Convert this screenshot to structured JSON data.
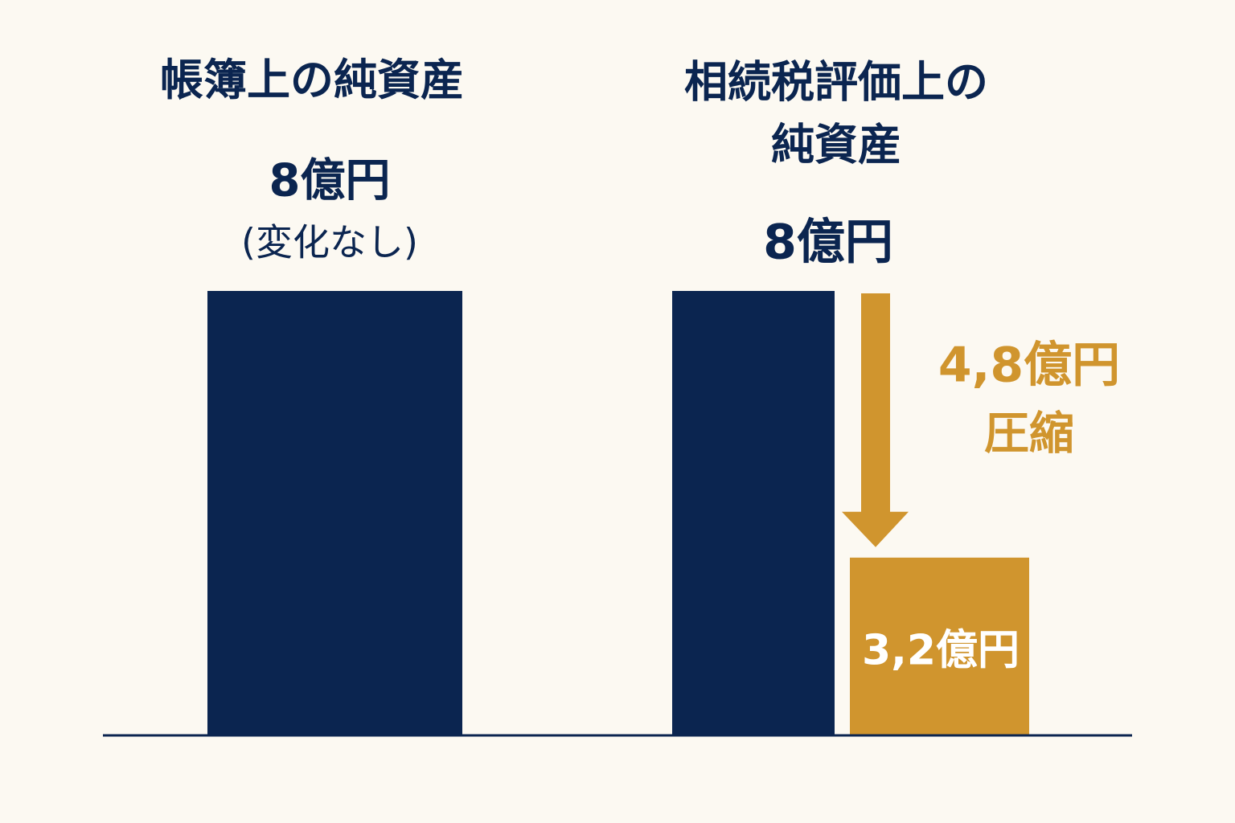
{
  "chart_data": {
    "type": "bar",
    "categories": [
      "帳簿上の純資産",
      "相続税評価上の\n純資産"
    ],
    "values": [
      8,
      8
    ],
    "value_labels": [
      "8億円",
      "8億円"
    ],
    "color": "#0b2550",
    "annotation": "(変化なし)",
    "reduced": {
      "value": 3.2,
      "value_label": "3,2億円",
      "color": "#d0952e"
    },
    "reduction": {
      "value": 4.8,
      "label": "4,8億円",
      "text": "圧縮"
    }
  }
}
